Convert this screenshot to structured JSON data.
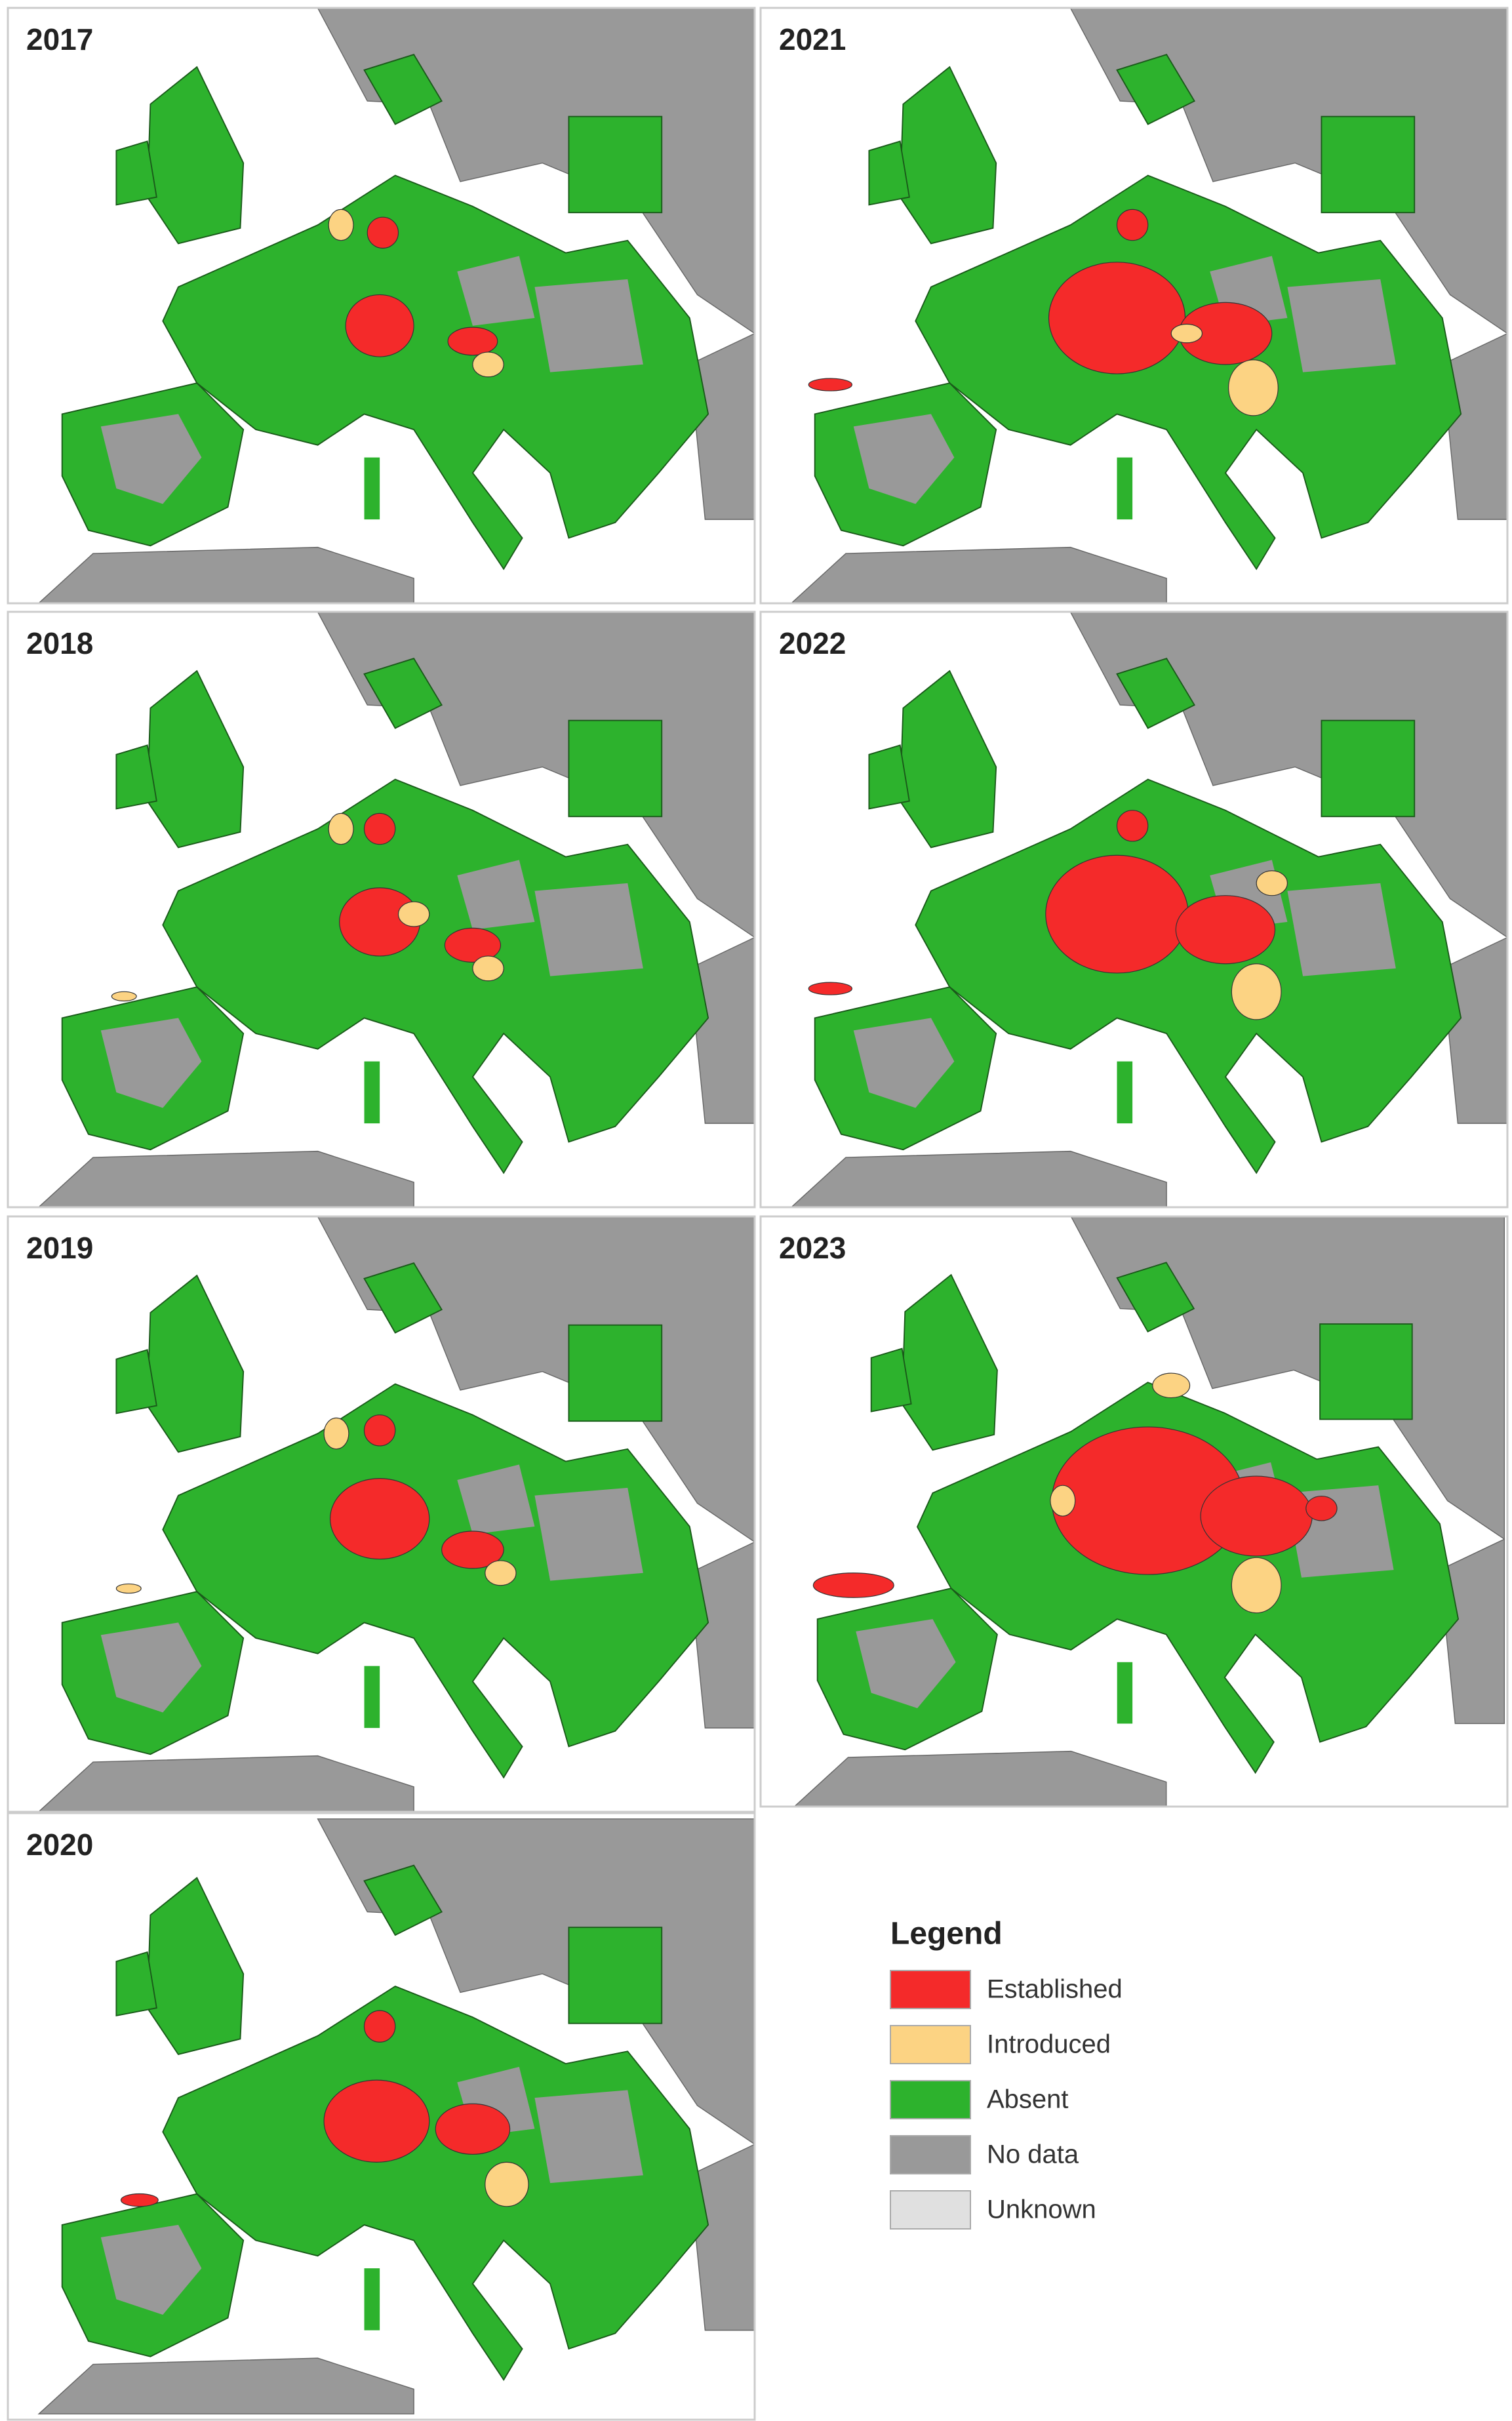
{
  "panels": [
    {
      "year": "2017"
    },
    {
      "year": "2018"
    },
    {
      "year": "2019"
    },
    {
      "year": "2020"
    },
    {
      "year": "2021"
    },
    {
      "year": "2022"
    },
    {
      "year": "2023"
    }
  ],
  "legend": {
    "title": "Legend",
    "items": [
      {
        "label": "Established",
        "color": "#f42a2a"
      },
      {
        "label": "Introduced",
        "color": "#fcd383"
      },
      {
        "label": "Absent",
        "color": "#2db22d"
      },
      {
        "label": "No data",
        "color": "#999999"
      },
      {
        "label": "Unknown",
        "color": "#e0e0e0"
      }
    ]
  }
}
